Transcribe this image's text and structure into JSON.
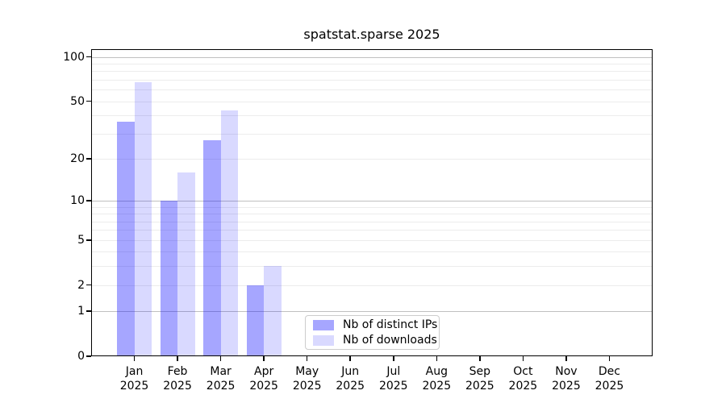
{
  "title": "spatstat.sparse 2025",
  "chart_data": {
    "type": "bar",
    "title": "spatstat.sparse 2025",
    "categories": [
      "Jan 2025",
      "Feb 2025",
      "Mar 2025",
      "Apr 2025",
      "May 2025",
      "Jun 2025",
      "Jul 2025",
      "Aug 2025",
      "Sep 2025",
      "Oct 2025",
      "Nov 2025",
      "Dec 2025"
    ],
    "series": [
      {
        "name": "Nb of distinct IPs",
        "color": "rgba(0,0,255,0.35)",
        "values": [
          36,
          10,
          27,
          2,
          0,
          0,
          0,
          0,
          0,
          0,
          0,
          0
        ]
      },
      {
        "name": "Nb of downloads",
        "color": "rgba(0,0,255,0.15)",
        "values": [
          67,
          16,
          43,
          3,
          0,
          0,
          0,
          0,
          0,
          0,
          0,
          0
        ]
      }
    ],
    "yscale": "log1p",
    "yticks": [
      0,
      1,
      2,
      5,
      10,
      20,
      50,
      100
    ],
    "ylim": [
      0,
      113
    ],
    "grid": true,
    "legend_position": "lower-center",
    "xlabel": "",
    "ylabel": ""
  }
}
